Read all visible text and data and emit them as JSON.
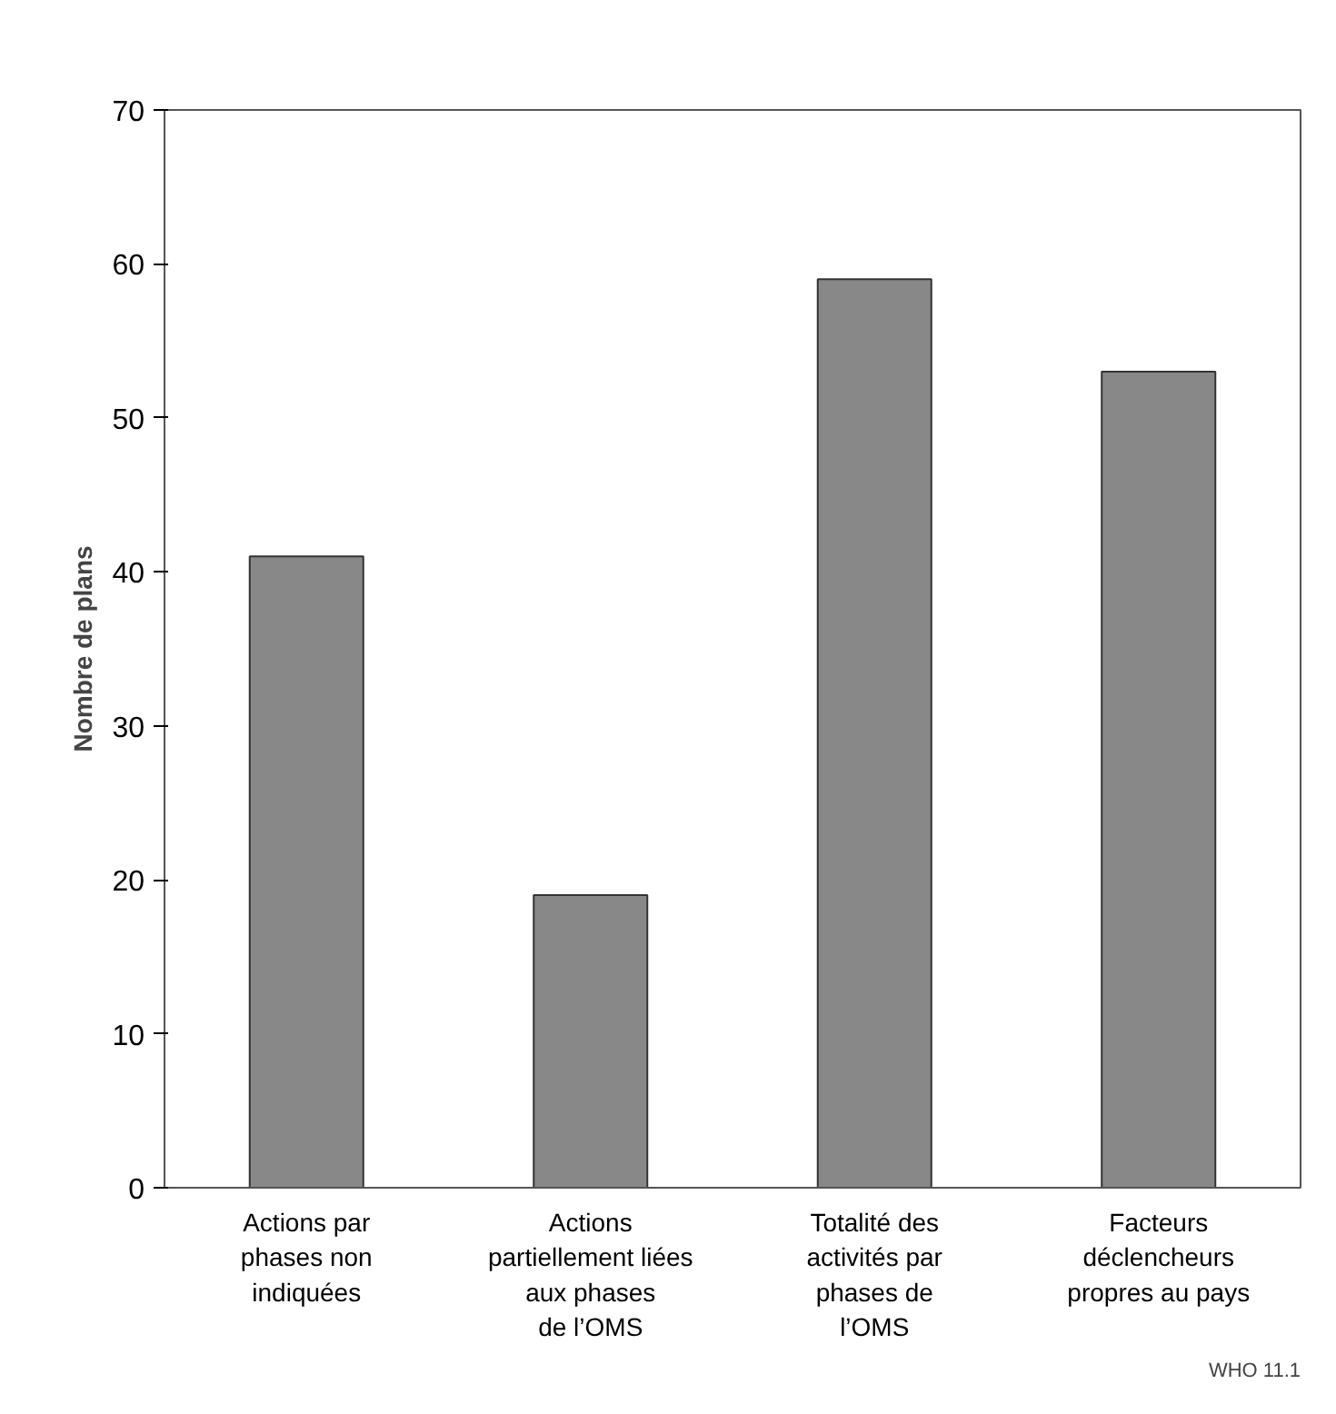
{
  "chart_data": {
    "type": "bar",
    "ylabel": "Nombre de plans",
    "categories": [
      "Actions par\nphases non\nindiquées",
      "Actions\npartiellement liées\naux phases\nde l’OMS",
      "Totalité des\nactivités par\nphases de\nl’OMS",
      "Facteurs\ndéclencheurs\npropres au pays"
    ],
    "values": [
      41,
      19,
      59,
      53
    ],
    "color": "#888888",
    "ylim": [
      0,
      70
    ],
    "yticks": [
      0,
      10,
      20,
      30,
      40,
      50,
      60,
      70
    ],
    "grid": false,
    "annotations": [
      "WHO 11.1"
    ]
  }
}
